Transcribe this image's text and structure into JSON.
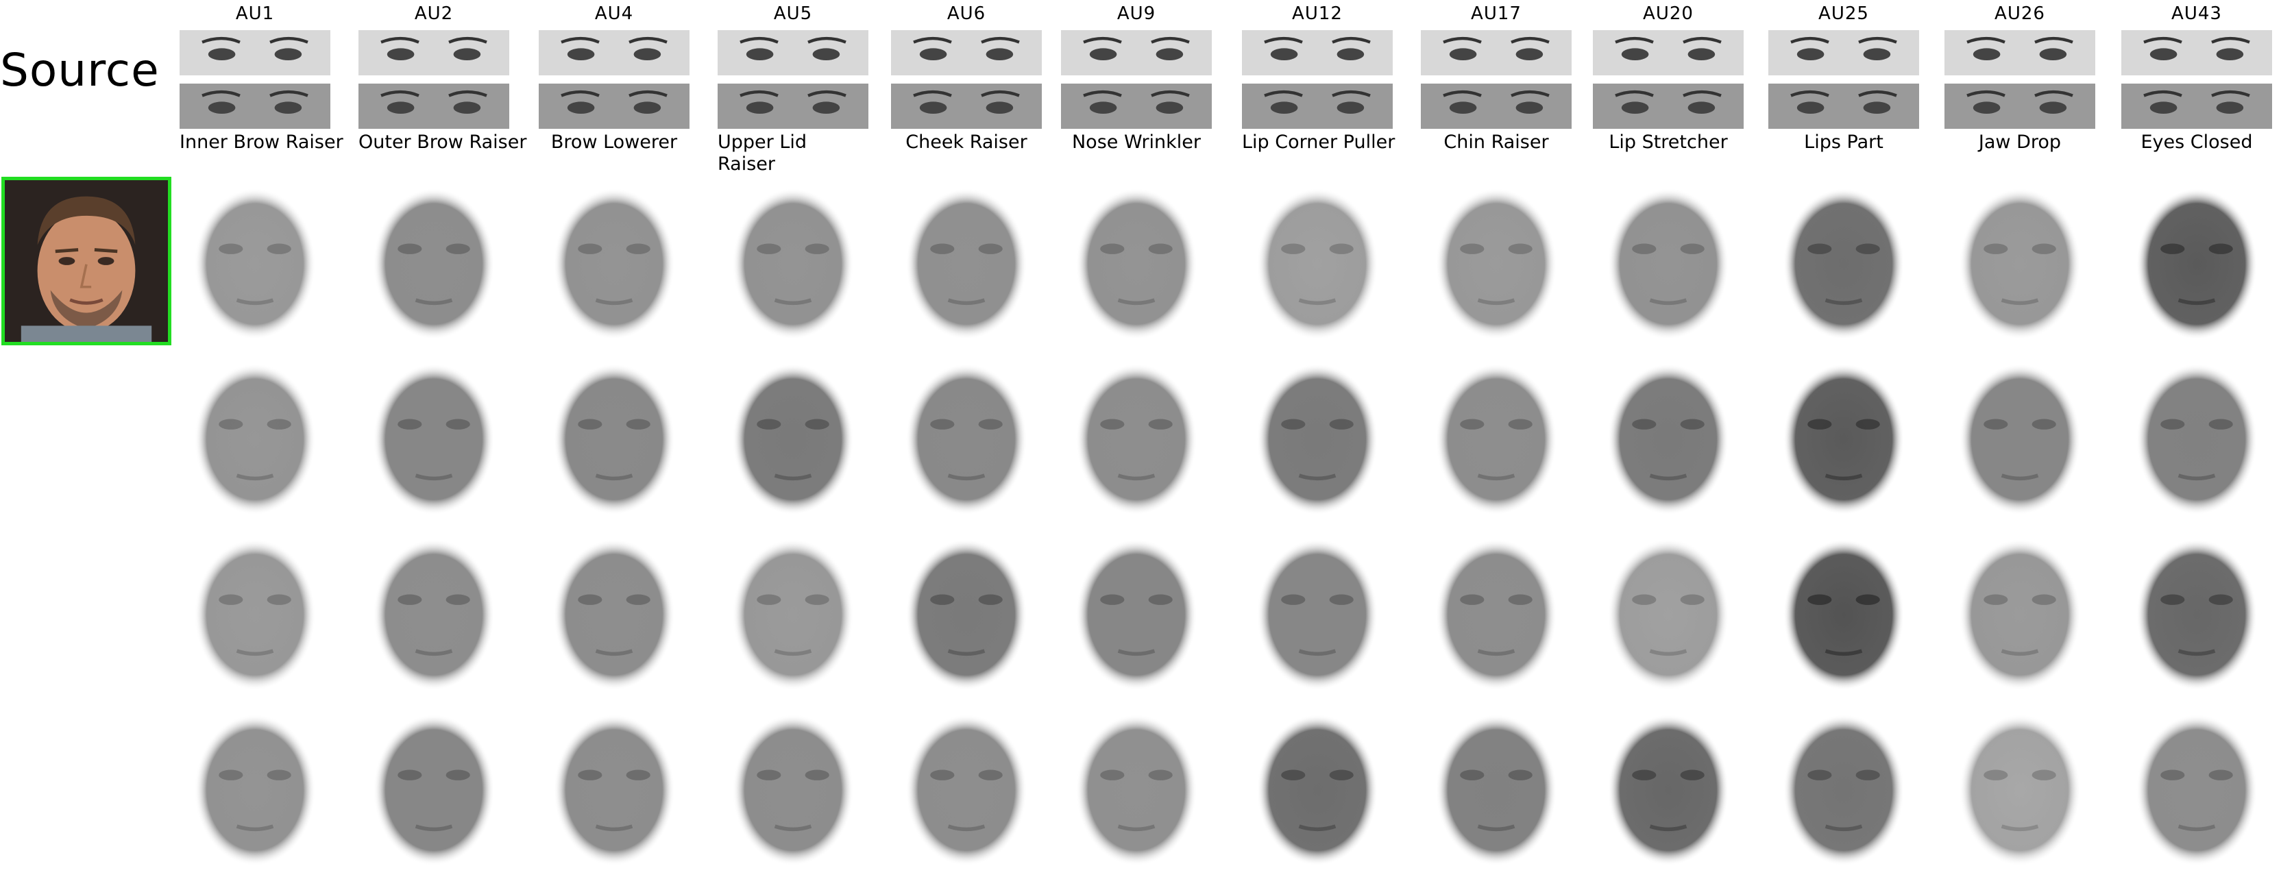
{
  "source_label": "Source",
  "columns": [
    {
      "code": "AU1",
      "name": "Inner Brow Raiser"
    },
    {
      "code": "AU2",
      "name": "Outer Brow Raiser"
    },
    {
      "code": "AU4",
      "name": "Brow Lowerer"
    },
    {
      "code": "AU5",
      "name": "Upper Lid Raiser"
    },
    {
      "code": "AU6",
      "name": "Cheek Raiser"
    },
    {
      "code": "AU9",
      "name": "Nose Wrinkler"
    },
    {
      "code": "AU12",
      "name": "Lip Corner Puller"
    },
    {
      "code": "AU17",
      "name": "Chin Raiser"
    },
    {
      "code": "AU20",
      "name": "Lip Stretcher"
    },
    {
      "code": "AU25",
      "name": "Lips Part"
    },
    {
      "code": "AU26",
      "name": "Jaw Drop"
    },
    {
      "code": "AU43",
      "name": "Eyes Closed"
    }
  ],
  "source_border_color": "#22dd22"
}
